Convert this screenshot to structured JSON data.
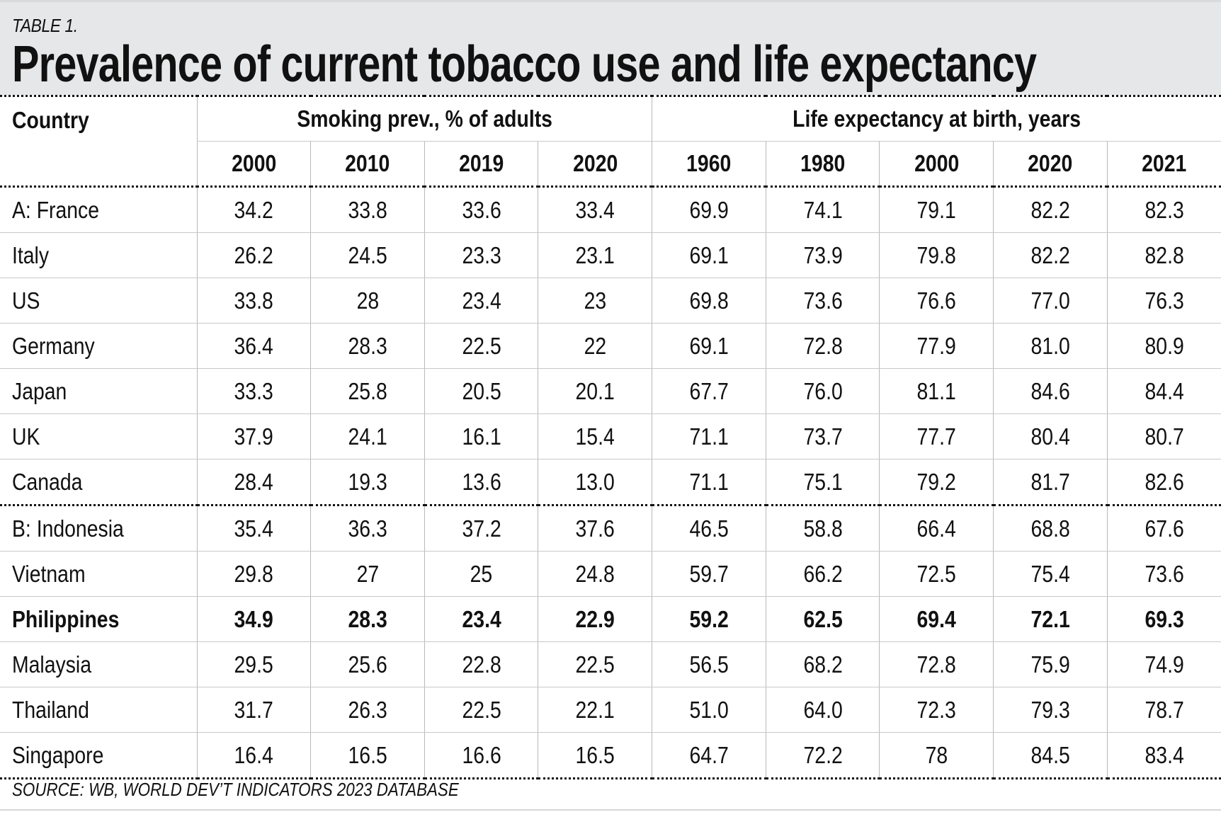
{
  "header": {
    "label": "TABLE 1.",
    "title": "Prevalence of current tobacco use and life expectancy"
  },
  "table": {
    "country_header": "Country",
    "groups": [
      "Smoking prev., % of adults",
      "Life expectancy at birth, years"
    ],
    "years": [
      "2000",
      "2010",
      "2019",
      "2020",
      "1960",
      "1980",
      "2000",
      "2020",
      "2021"
    ],
    "rows": [
      {
        "country": "A: France",
        "values": [
          "34.2",
          "33.8",
          "33.6",
          "33.4",
          "69.9",
          "74.1",
          "79.1",
          "82.2",
          "82.3"
        ]
      },
      {
        "country": "Italy",
        "values": [
          "26.2",
          "24.5",
          "23.3",
          "23.1",
          "69.1",
          "73.9",
          "79.8",
          "82.2",
          "82.8"
        ]
      },
      {
        "country": "US",
        "values": [
          "33.8",
          "28",
          "23.4",
          "23",
          "69.8",
          "73.6",
          "76.6",
          "77.0",
          "76.3"
        ]
      },
      {
        "country": "Germany",
        "values": [
          "36.4",
          "28.3",
          "22.5",
          "22",
          "69.1",
          "72.8",
          "77.9",
          "81.0",
          "80.9"
        ]
      },
      {
        "country": "Japan",
        "values": [
          "33.3",
          "25.8",
          "20.5",
          "20.1",
          "67.7",
          "76.0",
          "81.1",
          "84.6",
          "84.4"
        ]
      },
      {
        "country": "UK",
        "values": [
          "37.9",
          "24.1",
          "16.1",
          "15.4",
          "71.1",
          "73.7",
          "77.7",
          "80.4",
          "80.7"
        ]
      },
      {
        "country": "Canada",
        "values": [
          "28.4",
          "19.3",
          "13.6",
          "13.0",
          "71.1",
          "75.1",
          "79.2",
          "81.7",
          "82.6"
        ]
      },
      {
        "country": "B: Indonesia",
        "values": [
          "35.4",
          "36.3",
          "37.2",
          "37.6",
          "46.5",
          "58.8",
          "66.4",
          "68.8",
          "67.6"
        ]
      },
      {
        "country": "Vietnam",
        "values": [
          "29.8",
          "27",
          "25",
          "24.8",
          "59.7",
          "66.2",
          "72.5",
          "75.4",
          "73.6"
        ]
      },
      {
        "country": "Philippines",
        "values": [
          "34.9",
          "28.3",
          "23.4",
          "22.9",
          "59.2",
          "62.5",
          "69.4",
          "72.1",
          "69.3"
        ]
      },
      {
        "country": "Malaysia",
        "values": [
          "29.5",
          "25.6",
          "22.8",
          "22.5",
          "56.5",
          "68.2",
          "72.8",
          "75.9",
          "74.9"
        ]
      },
      {
        "country": "Thailand",
        "values": [
          "31.7",
          "26.3",
          "22.5",
          "22.1",
          "51.0",
          "64.0",
          "72.3",
          "79.3",
          "78.7"
        ]
      },
      {
        "country": "Singapore",
        "values": [
          "16.4",
          "16.5",
          "16.6",
          "16.5",
          "64.7",
          "72.2",
          "78",
          "84.5",
          "83.4"
        ]
      }
    ]
  },
  "source": "SOURCE: WB, WORLD DEV’T INDICATORS 2023 DATABASE"
}
